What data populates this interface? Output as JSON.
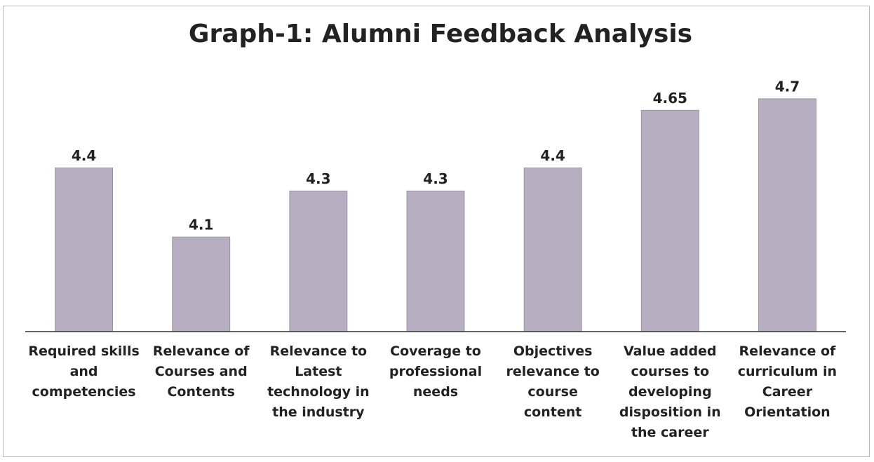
{
  "chart_data": {
    "type": "bar",
    "title": "Graph-1: Alumni Feedback Analysis",
    "categories": [
      "Required skills and competencies",
      "Relevance of Courses and Contents",
      "Relevance to Latest technology in the industry",
      "Coverage to professional needs",
      "Objectives relevance to course content",
      "Value added courses to developing disposition in the career",
      "Relevance of curriculum in Career Orientation"
    ],
    "values": [
      4.4,
      4.1,
      4.3,
      4.3,
      4.4,
      4.65,
      4.7
    ],
    "color": "#b8aec2",
    "ylim": [
      3.69,
      4.8
    ]
  }
}
